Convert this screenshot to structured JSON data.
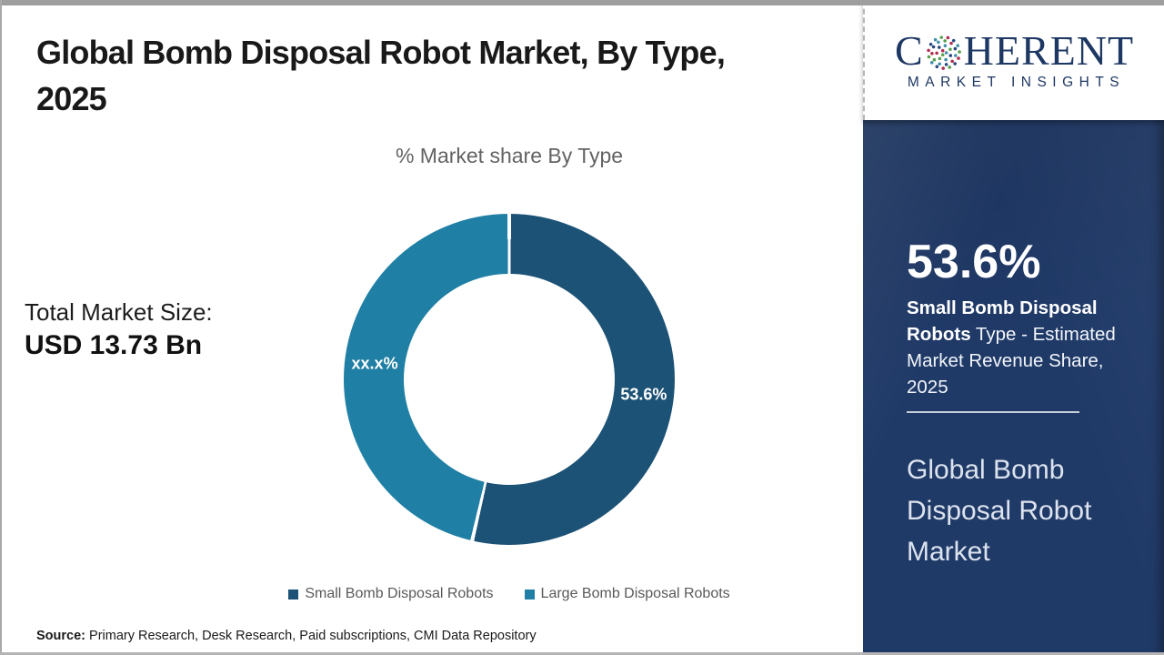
{
  "header": {
    "title_lines": [
      "Global Bomb Disposal Robot Market, By Type,",
      "2025"
    ]
  },
  "chart": {
    "subtitle": "% Market share By Type"
  },
  "total_market": {
    "label": "Total Market Size:",
    "value": "USD 13.73 Bn"
  },
  "chart_data": {
    "type": "pie",
    "donut": true,
    "title": "% Market share By Type",
    "legend_position": "bottom",
    "slices": [
      {
        "label": "Small Bomb Disposal Robots",
        "value": 53.6,
        "display_label": "53.6%",
        "color": "#1c5276"
      },
      {
        "label": "Large Bomb Disposal Robots",
        "value": 46.4,
        "display_label": "xx.x%",
        "color": "#1f7fa4"
      }
    ]
  },
  "logo": {
    "word_start": "C",
    "word_end": "HERENT",
    "tagline": "MARKET INSIGHTS",
    "brand_color": "#1e3864",
    "globe_colors": [
      "#3e8fa8",
      "#56a04b",
      "#b22c4e",
      "#27477d"
    ]
  },
  "sidebar": {
    "stat_value": "53.6%",
    "stat_bold": "Small Bomb Disposal Robots",
    "stat_rest": " Type - Estimated Market Revenue Share, 2025",
    "panel_title": "Global Bomb Disposal Robot Market",
    "bg_color": "#203a68"
  },
  "footer": {
    "source_label": "Source:",
    "source_text": " Primary Research, Desk Research, Paid subscriptions, CMI Data Repository"
  }
}
